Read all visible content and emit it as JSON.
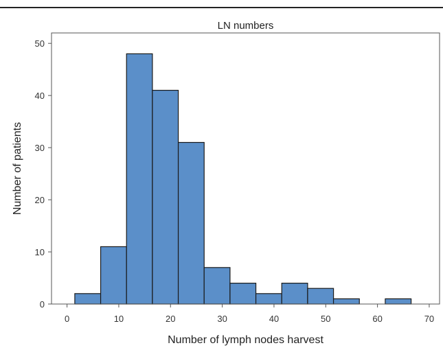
{
  "chart_data": {
    "type": "bar",
    "subtype": "histogram",
    "title": "LN numbers",
    "xlabel": "Number of lymph nodes harvest",
    "ylabel": "Number of patients",
    "xlim": [
      -3,
      72
    ],
    "ylim": [
      0,
      52
    ],
    "x_ticks": [
      0,
      10,
      20,
      30,
      40,
      50,
      60,
      70
    ],
    "y_ticks": [
      0,
      10,
      20,
      30,
      40,
      50
    ],
    "bin_width": 5,
    "bins": [
      {
        "start": 1.5,
        "end": 6.5,
        "value": 2
      },
      {
        "start": 6.5,
        "end": 11.5,
        "value": 11
      },
      {
        "start": 11.5,
        "end": 16.5,
        "value": 48
      },
      {
        "start": 16.5,
        "end": 21.5,
        "value": 41
      },
      {
        "start": 21.5,
        "end": 26.5,
        "value": 31
      },
      {
        "start": 26.5,
        "end": 31.5,
        "value": 7
      },
      {
        "start": 31.5,
        "end": 36.5,
        "value": 4
      },
      {
        "start": 36.5,
        "end": 41.5,
        "value": 2
      },
      {
        "start": 41.5,
        "end": 46.5,
        "value": 4
      },
      {
        "start": 46.5,
        "end": 51.5,
        "value": 3
      },
      {
        "start": 51.5,
        "end": 56.5,
        "value": 1
      },
      {
        "start": 61.5,
        "end": 66.5,
        "value": 1
      }
    ],
    "grid": false,
    "legend": "none",
    "bar_color": "#5b8fc9",
    "bar_edge_color": "#1a1a1a"
  }
}
